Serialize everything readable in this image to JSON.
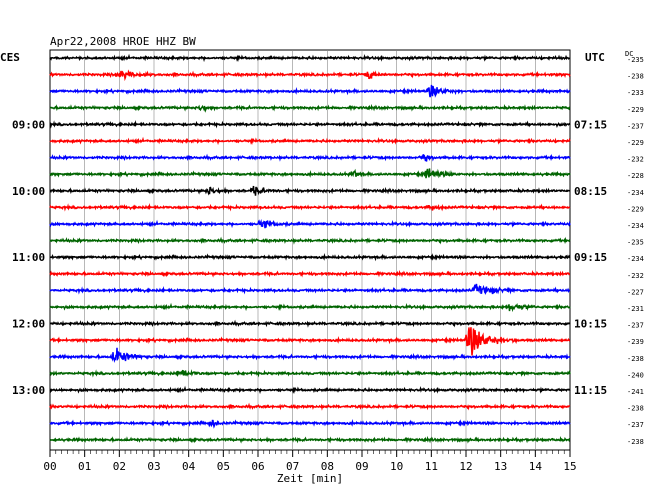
{
  "header": {
    "title": "Apr22,2008   HROE HHZ BW",
    "left_zone": "CES",
    "right_zone": "UTC",
    "dc_label": "DC"
  },
  "chart_data": {
    "type": "line",
    "title": "Apr22,2008   HROE HHZ BW",
    "xlabel": "Zeit [min]",
    "x_ticks": [
      "00",
      "01",
      "02",
      "03",
      "04",
      "05",
      "06",
      "07",
      "08",
      "09",
      "10",
      "11",
      "12",
      "13",
      "14",
      "15"
    ],
    "xlim": [
      0,
      15
    ],
    "grid": true,
    "colors": [
      "#000000",
      "#ff0000",
      "#0000ff",
      "#006400"
    ],
    "left_time_labels": [
      {
        "row": 4,
        "text": "09:00"
      },
      {
        "row": 8,
        "text": "10:00"
      },
      {
        "row": 12,
        "text": "11:00"
      },
      {
        "row": 16,
        "text": "12:00"
      },
      {
        "row": 20,
        "text": "13:00"
      }
    ],
    "right_time_labels": [
      {
        "row": 4,
        "text": "07:15"
      },
      {
        "row": 8,
        "text": "08:15"
      },
      {
        "row": 12,
        "text": "09:15"
      },
      {
        "row": 16,
        "text": "10:15"
      },
      {
        "row": 20,
        "text": "11:15"
      }
    ],
    "dc_values": [
      "-235",
      "-238",
      "-233",
      "-229",
      "-237",
      "-229",
      "-232",
      "-228",
      "-234",
      "-229",
      "-234",
      "-235",
      "-234",
      "-232",
      "-227",
      "-231",
      "-237",
      "-239",
      "-238",
      "-240",
      "-241",
      "-238",
      "-237",
      "-238"
    ],
    "events": [
      {
        "row": 1,
        "minute": 2.0,
        "amp": 0.5,
        "len": 1.1
      },
      {
        "row": 1,
        "minute": 9.2,
        "amp": 0.45,
        "len": 0.5
      },
      {
        "row": 2,
        "minute": 11.0,
        "amp": 0.7,
        "len": 0.9
      },
      {
        "row": 3,
        "minute": 4.4,
        "amp": 0.4,
        "len": 0.3
      },
      {
        "row": 6,
        "minute": 10.8,
        "amp": 0.35,
        "len": 0.4
      },
      {
        "row": 7,
        "minute": 10.9,
        "amp": 0.55,
        "len": 0.9
      },
      {
        "row": 7,
        "minute": 8.8,
        "amp": 0.35,
        "len": 0.3
      },
      {
        "row": 8,
        "minute": 4.6,
        "amp": 0.4,
        "len": 0.5
      },
      {
        "row": 8,
        "minute": 5.9,
        "amp": 0.45,
        "len": 0.7
      },
      {
        "row": 9,
        "minute": 11.0,
        "amp": 0.3,
        "len": 0.4
      },
      {
        "row": 10,
        "minute": 6.1,
        "amp": 0.45,
        "len": 0.8
      },
      {
        "row": 14,
        "minute": 12.3,
        "amp": 0.6,
        "len": 1.1
      },
      {
        "row": 15,
        "minute": 13.3,
        "amp": 0.5,
        "len": 0.7
      },
      {
        "row": 17,
        "minute": 12.1,
        "amp": 1.8,
        "len": 1.4
      },
      {
        "row": 18,
        "minute": 1.9,
        "amp": 0.9,
        "len": 0.9
      },
      {
        "row": 19,
        "minute": 3.8,
        "amp": 0.45,
        "len": 0.6
      },
      {
        "row": 22,
        "minute": 4.7,
        "amp": 0.3,
        "len": 0.4
      }
    ],
    "noise_level": 0.12
  }
}
